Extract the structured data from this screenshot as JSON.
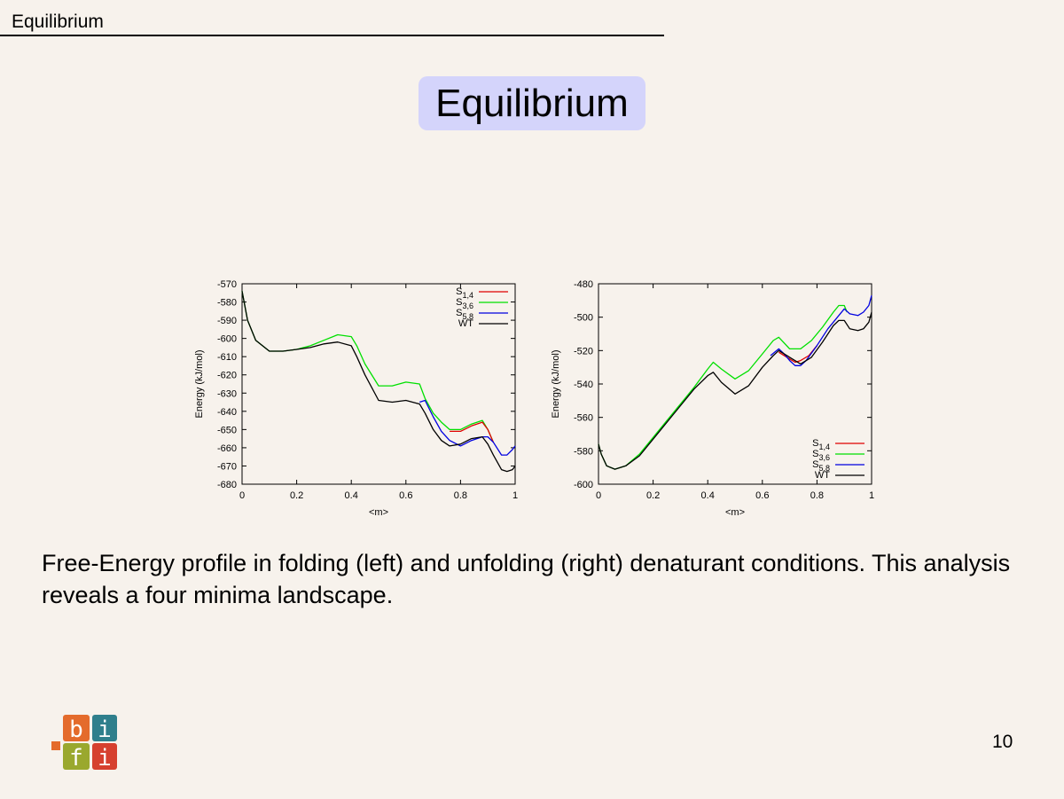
{
  "header": {
    "section": "Equilibrium"
  },
  "slide": {
    "title": "Equilibrium",
    "caption": "Free-Energy profile in folding (left) and unfolding (right) denaturant conditions. This analysis reveals a four minima landscape.",
    "page_number": "10"
  },
  "logo": {
    "letters": [
      "b",
      "i",
      "f",
      "i"
    ],
    "colors": [
      "#e46b2c",
      "#2f7f8c",
      "#9aa82e",
      "#d6402f"
    ]
  },
  "chart_data": [
    {
      "type": "line",
      "xlabel": "<m>",
      "ylabel": "Energy (kJ/mol)",
      "xlim": [
        0,
        1
      ],
      "ylim": [
        -680,
        -570
      ],
      "xticks": [
        0,
        0.2,
        0.4,
        0.6,
        0.8,
        1
      ],
      "xtick_labels": [
        "0",
        "0.2",
        "0.4",
        "0.6",
        "0.8",
        "1"
      ],
      "yticks": [
        -680,
        -670,
        -660,
        -650,
        -640,
        -630,
        -620,
        -610,
        -600,
        -590,
        -580,
        -570
      ],
      "ytick_labels": [
        "-680",
        "-670",
        "-660",
        "-650",
        "-640",
        "-630",
        "-620",
        "-610",
        "-600",
        "-590",
        "-580",
        "-570"
      ],
      "legend_position": "top-right",
      "series": [
        {
          "name": "S",
          "subscript": "1,4",
          "color": "#e00000",
          "x": [
            0.76,
            0.8,
            0.84,
            0.88,
            0.9,
            0.92
          ],
          "y": [
            -651,
            -651,
            -648,
            -646,
            -650,
            -657
          ]
        },
        {
          "name": "S",
          "subscript": "3,6",
          "color": "#00e000",
          "x": [
            0,
            0.02,
            0.05,
            0.1,
            0.15,
            0.2,
            0.25,
            0.3,
            0.35,
            0.4,
            0.42,
            0.45,
            0.5,
            0.55,
            0.6,
            0.65,
            0.67,
            0.7,
            0.73,
            0.76,
            0.8,
            0.84,
            0.88,
            0.9,
            0.92
          ],
          "y": [
            -574,
            -590,
            -601,
            -607,
            -607,
            -606,
            -604,
            -601,
            -598,
            -599,
            -604,
            -614,
            -626,
            -626,
            -624,
            -625,
            -633,
            -641,
            -646,
            -650,
            -650,
            -647,
            -645,
            -650,
            -657
          ]
        },
        {
          "name": "S",
          "subscript": "5,8",
          "color": "#0000e0",
          "x": [
            0.65,
            0.67,
            0.7,
            0.73,
            0.76,
            0.8,
            0.84,
            0.88,
            0.9,
            0.92,
            0.95,
            0.97,
            0.99,
            1.0
          ],
          "y": [
            -635,
            -634,
            -643,
            -651,
            -656,
            -659,
            -656,
            -654,
            -654,
            -657,
            -664,
            -664,
            -661,
            -659
          ]
        },
        {
          "name": "WT",
          "subscript": "",
          "color": "#000000",
          "x": [
            0,
            0.02,
            0.05,
            0.1,
            0.15,
            0.2,
            0.25,
            0.3,
            0.35,
            0.4,
            0.42,
            0.45,
            0.5,
            0.55,
            0.6,
            0.65,
            0.67,
            0.7,
            0.73,
            0.76,
            0.8,
            0.84,
            0.88,
            0.9,
            0.92,
            0.95,
            0.97,
            0.99,
            1.0
          ],
          "y": [
            -574,
            -590,
            -601,
            -607,
            -607,
            -606,
            -605,
            -603,
            -602,
            -604,
            -610,
            -620,
            -634,
            -635,
            -634,
            -636,
            -641,
            -650,
            -656,
            -659,
            -658,
            -655,
            -654,
            -658,
            -664,
            -672,
            -673,
            -672,
            -670
          ]
        }
      ]
    },
    {
      "type": "line",
      "xlabel": "<m>",
      "ylabel": "Energy (kJ/mol)",
      "xlim": [
        0,
        1
      ],
      "ylim": [
        -600,
        -480
      ],
      "xticks": [
        0,
        0.2,
        0.4,
        0.6,
        0.8,
        1
      ],
      "xtick_labels": [
        "0",
        "0.2",
        "0.4",
        "0.6",
        "0.8",
        "1"
      ],
      "yticks": [
        -600,
        -580,
        -560,
        -540,
        -520,
        -500,
        -480
      ],
      "ytick_labels": [
        "-600",
        "-580",
        "-560",
        "-540",
        "-520",
        "-500",
        "-480"
      ],
      "legend_position": "bottom-right",
      "series": [
        {
          "name": "S",
          "subscript": "1,4",
          "color": "#e00000",
          "x": [
            0.66,
            0.7,
            0.72,
            0.74,
            0.77,
            0.8
          ],
          "y": [
            -521,
            -525,
            -527,
            -526,
            -523,
            -517
          ]
        },
        {
          "name": "S",
          "subscript": "3,6",
          "color": "#00e000",
          "x": [
            0,
            0.01,
            0.03,
            0.06,
            0.1,
            0.15,
            0.2,
            0.25,
            0.3,
            0.35,
            0.4,
            0.42,
            0.45,
            0.5,
            0.55,
            0.6,
            0.64,
            0.66,
            0.7,
            0.74,
            0.78,
            0.82,
            0.86,
            0.88,
            0.9,
            0.91
          ],
          "y": [
            -576,
            -582,
            -589,
            -591,
            -589,
            -582,
            -572,
            -562,
            -552,
            -542,
            -531,
            -527,
            -531,
            -537,
            -532,
            -522,
            -514,
            -512,
            -519,
            -519,
            -514,
            -506,
            -497,
            -493,
            -493,
            -497
          ]
        },
        {
          "name": "S",
          "subscript": "5,8",
          "color": "#0000e0",
          "x": [
            0.63,
            0.66,
            0.68,
            0.7,
            0.72,
            0.74,
            0.76,
            0.8,
            0.84,
            0.88,
            0.9,
            0.92,
            0.95,
            0.97,
            0.99,
            1.0
          ],
          "y": [
            -523,
            -519,
            -522,
            -526,
            -529,
            -529,
            -526,
            -517,
            -507,
            -499,
            -495,
            -498,
            -499,
            -497,
            -493,
            -487
          ]
        },
        {
          "name": "WT",
          "subscript": "",
          "color": "#000000",
          "x": [
            0,
            0.01,
            0.03,
            0.06,
            0.1,
            0.15,
            0.2,
            0.25,
            0.3,
            0.35,
            0.4,
            0.42,
            0.45,
            0.5,
            0.55,
            0.6,
            0.64,
            0.66,
            0.7,
            0.74,
            0.78,
            0.82,
            0.86,
            0.88,
            0.9,
            0.92,
            0.95,
            0.97,
            0.99,
            1.0
          ],
          "y": [
            -576,
            -582,
            -589,
            -591,
            -589,
            -583,
            -573,
            -563,
            -553,
            -543,
            -535,
            -533,
            -539,
            -546,
            -541,
            -530,
            -523,
            -520,
            -524,
            -528,
            -524,
            -515,
            -505,
            -502,
            -502,
            -507,
            -508,
            -507,
            -503,
            -497
          ]
        }
      ]
    }
  ]
}
